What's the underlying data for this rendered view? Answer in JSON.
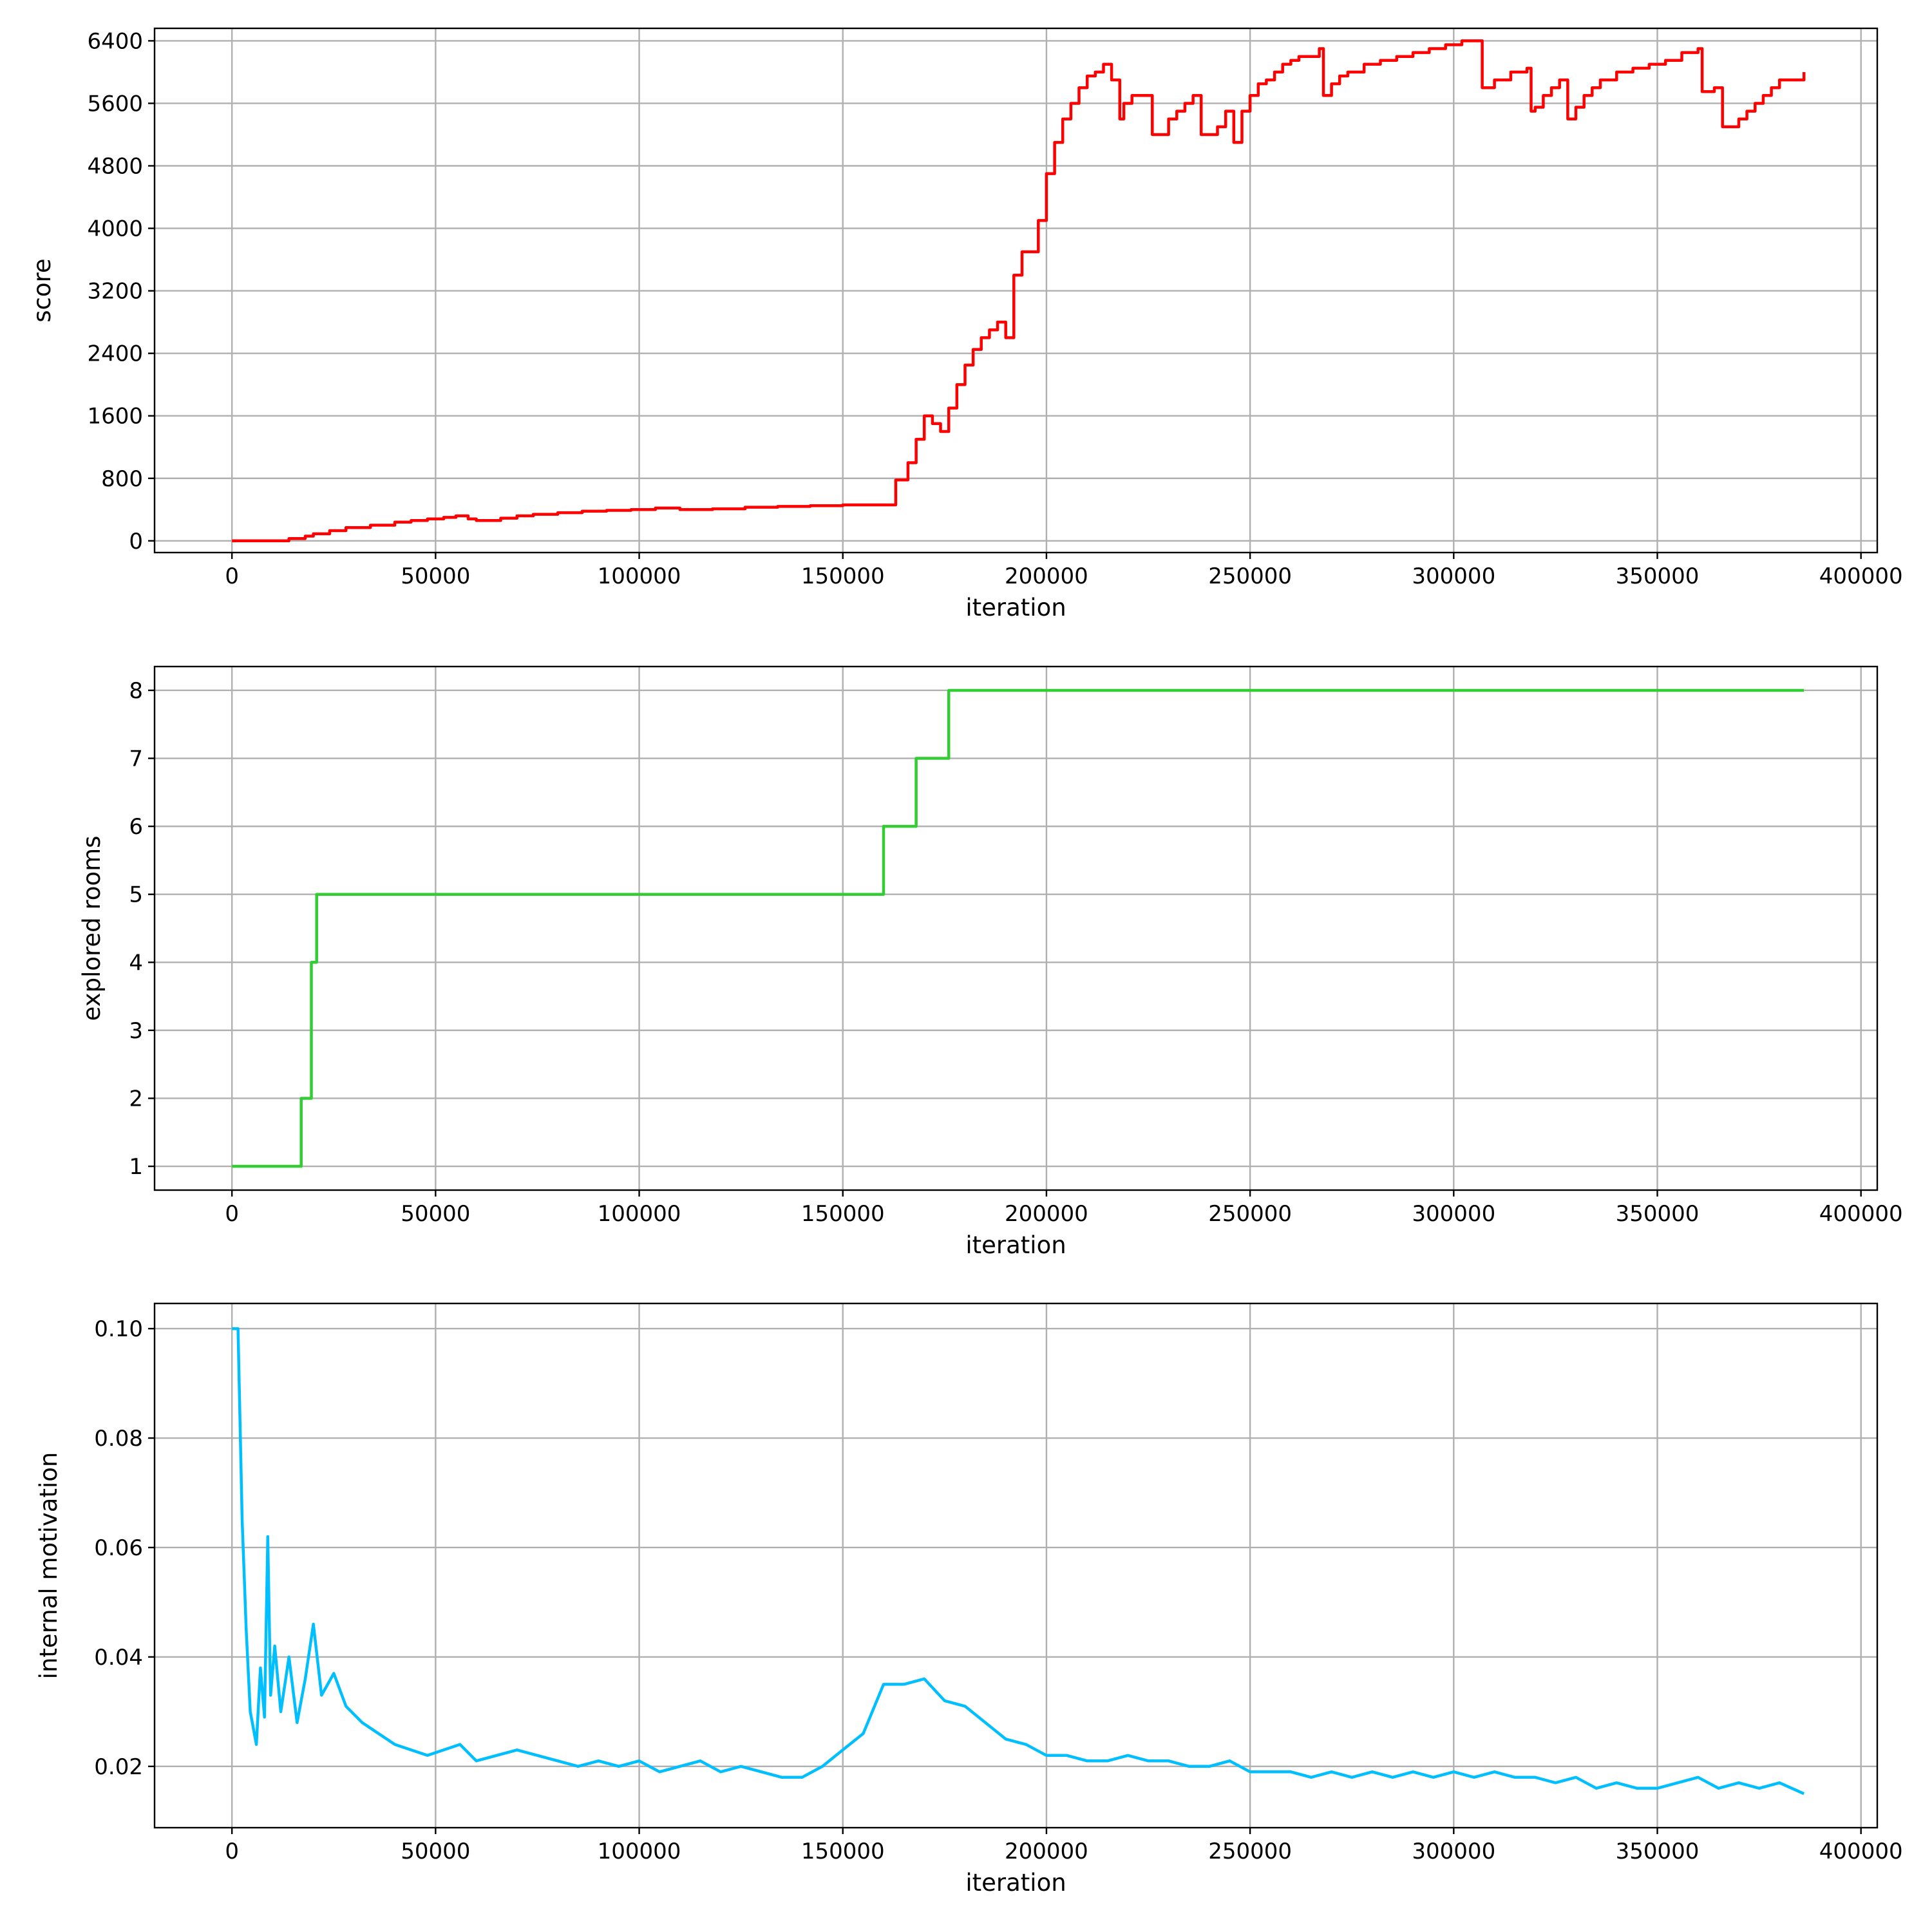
{
  "chart_data": [
    {
      "type": "line",
      "title": "",
      "xlabel": "iteration",
      "ylabel": "score",
      "xlim": [
        -19000,
        404000
      ],
      "ylim": [
        -150,
        6560
      ],
      "grid": true,
      "color": "#ff0000",
      "step": true,
      "xticks": [
        0,
        50000,
        100000,
        150000,
        200000,
        250000,
        300000,
        350000,
        400000
      ],
      "xtick_labels": [
        "0",
        "50000",
        "100000",
        "150000",
        "200000",
        "250000",
        "300000",
        "350000",
        "400000"
      ],
      "yticks": [
        0,
        800,
        1600,
        2400,
        3200,
        4000,
        4800,
        5600,
        6400
      ],
      "ytick_labels": [
        "0",
        "800",
        "1600",
        "2400",
        "3200",
        "4000",
        "4800",
        "5600",
        "6400"
      ],
      "series": [
        {
          "x": [
            0,
            10000,
            14000,
            18000,
            20000,
            24000,
            28000,
            34000,
            40000,
            44000,
            48000,
            52000,
            55000,
            58000,
            60000,
            66000,
            70000,
            74000,
            80000,
            86000,
            92000,
            98000,
            104000,
            110000,
            118000,
            126000,
            134000,
            142000,
            150000,
            160000,
            163000,
            166000,
            168000,
            170000,
            172000,
            174000,
            176000,
            178000,
            180000,
            182000,
            184000,
            186000,
            188000,
            190000,
            192000,
            194000,
            196000,
            198000,
            200000,
            202000,
            204000,
            206000,
            208000,
            210000,
            212000,
            214000,
            216000,
            218000,
            219000,
            221000,
            224000,
            226000,
            228000,
            230000,
            232000,
            234000,
            236000,
            238000,
            240000,
            242000,
            244000,
            246000,
            248000,
            250000,
            252000,
            254000,
            256000,
            258000,
            260000,
            262000,
            264000,
            267000,
            268000,
            270000,
            272000,
            274000,
            278000,
            282000,
            286000,
            290000,
            294000,
            298000,
            302000,
            306000,
            307000,
            310000,
            314000,
            318000,
            319000,
            320000,
            322000,
            324000,
            326000,
            328000,
            330000,
            332000,
            334000,
            336000,
            340000,
            344000,
            348000,
            352000,
            356000,
            360000,
            361000,
            364000,
            366000,
            368000,
            370000,
            372000,
            374000,
            376000,
            378000,
            380000,
            382000,
            386000
          ],
          "values": [
            0,
            0,
            30,
            60,
            90,
            130,
            170,
            200,
            240,
            260,
            280,
            300,
            320,
            280,
            260,
            290,
            320,
            340,
            360,
            380,
            390,
            400,
            420,
            400,
            410,
            430,
            440,
            450,
            460,
            460,
            780,
            1000,
            1300,
            1600,
            1500,
            1400,
            1700,
            2000,
            2250,
            2450,
            2600,
            2700,
            2800,
            2600,
            3400,
            3700,
            3700,
            4100,
            4700,
            5100,
            5400,
            5600,
            5800,
            5950,
            6000,
            6100,
            5900,
            5400,
            5600,
            5700,
            5700,
            5200,
            5200,
            5400,
            5500,
            5600,
            5700,
            5200,
            5200,
            5300,
            5500,
            5100,
            5500,
            5700,
            5850,
            5900,
            6000,
            6100,
            6150,
            6200,
            6200,
            6300,
            5700,
            5850,
            5950,
            6000,
            6100,
            6150,
            6200,
            6250,
            6300,
            6350,
            6400,
            6400,
            5800,
            5900,
            6000,
            6050,
            5500,
            5550,
            5700,
            5800,
            5900,
            5400,
            5550,
            5700,
            5800,
            5900,
            6000,
            6050,
            6100,
            6150,
            6250,
            6300,
            5750,
            5800,
            5300,
            5300,
            5400,
            5500,
            5600,
            5700,
            5800,
            5900,
            5900,
            6000
          ]
        }
      ]
    },
    {
      "type": "line",
      "title": "",
      "xlabel": "iteration",
      "ylabel": "explored rooms",
      "xlim": [
        -19000,
        404000
      ],
      "ylim": [
        0.65,
        8.35
      ],
      "grid": true,
      "color": "#32cd32",
      "step": true,
      "xticks": [
        0,
        50000,
        100000,
        150000,
        200000,
        250000,
        300000,
        350000,
        400000
      ],
      "xtick_labels": [
        "0",
        "50000",
        "100000",
        "150000",
        "200000",
        "250000",
        "300000",
        "350000",
        "400000"
      ],
      "yticks": [
        1,
        2,
        3,
        4,
        5,
        6,
        7,
        8
      ],
      "ytick_labels": [
        "1",
        "2",
        "3",
        "4",
        "5",
        "6",
        "7",
        "8"
      ],
      "series": [
        {
          "x": [
            0,
            17000,
            19500,
            20800,
            160000,
            168000,
            176000,
            386000
          ],
          "values": [
            1,
            2,
            4,
            5,
            6,
            7,
            8,
            8
          ]
        }
      ]
    },
    {
      "type": "line",
      "title": "",
      "xlabel": "iteration",
      "ylabel": "internal motivation",
      "xlim": [
        -19000,
        404000
      ],
      "ylim": [
        0.0088,
        0.1046
      ],
      "grid": true,
      "color": "#00bfff",
      "step": false,
      "xticks": [
        0,
        50000,
        100000,
        150000,
        200000,
        250000,
        300000,
        350000,
        400000
      ],
      "xtick_labels": [
        "0",
        "50000",
        "100000",
        "150000",
        "200000",
        "250000",
        "300000",
        "350000",
        "400000"
      ],
      "yticks": [
        0.02,
        0.04,
        0.06,
        0.08,
        0.1
      ],
      "ytick_labels": [
        "0.02",
        "0.04",
        "0.06",
        "0.08",
        "0.10"
      ],
      "series": [
        {
          "x": [
            0,
            1500,
            2500,
            3500,
            4500,
            6000,
            7000,
            8000,
            8800,
            9500,
            10500,
            12000,
            14000,
            16000,
            18000,
            20000,
            22000,
            25000,
            28000,
            32000,
            36000,
            40000,
            44000,
            48000,
            52000,
            56000,
            60000,
            65000,
            70000,
            75000,
            80000,
            85000,
            90000,
            95000,
            100000,
            105000,
            110000,
            115000,
            120000,
            125000,
            130000,
            135000,
            140000,
            145000,
            150000,
            155000,
            160000,
            165000,
            170000,
            175000,
            180000,
            185000,
            190000,
            195000,
            200000,
            205000,
            210000,
            215000,
            220000,
            225000,
            230000,
            235000,
            240000,
            245000,
            250000,
            255000,
            260000,
            265000,
            270000,
            275000,
            280000,
            285000,
            290000,
            295000,
            300000,
            305000,
            310000,
            315000,
            320000,
            325000,
            330000,
            335000,
            340000,
            345000,
            350000,
            355000,
            360000,
            365000,
            370000,
            375000,
            380000,
            386000
          ],
          "values": [
            0.1,
            0.1,
            0.065,
            0.045,
            0.03,
            0.024,
            0.038,
            0.029,
            0.062,
            0.033,
            0.042,
            0.03,
            0.04,
            0.028,
            0.036,
            0.046,
            0.033,
            0.037,
            0.031,
            0.028,
            0.026,
            0.024,
            0.023,
            0.022,
            0.023,
            0.024,
            0.021,
            0.022,
            0.023,
            0.022,
            0.021,
            0.02,
            0.021,
            0.02,
            0.021,
            0.019,
            0.02,
            0.021,
            0.019,
            0.02,
            0.019,
            0.018,
            0.018,
            0.02,
            0.023,
            0.026,
            0.035,
            0.035,
            0.036,
            0.032,
            0.031,
            0.028,
            0.025,
            0.024,
            0.022,
            0.022,
            0.021,
            0.021,
            0.022,
            0.021,
            0.021,
            0.02,
            0.02,
            0.021,
            0.019,
            0.019,
            0.019,
            0.018,
            0.019,
            0.018,
            0.019,
            0.018,
            0.019,
            0.018,
            0.019,
            0.018,
            0.019,
            0.018,
            0.018,
            0.017,
            0.018,
            0.016,
            0.017,
            0.016,
            0.016,
            0.017,
            0.018,
            0.016,
            0.017,
            0.016,
            0.017,
            0.015
          ]
        }
      ]
    }
  ]
}
